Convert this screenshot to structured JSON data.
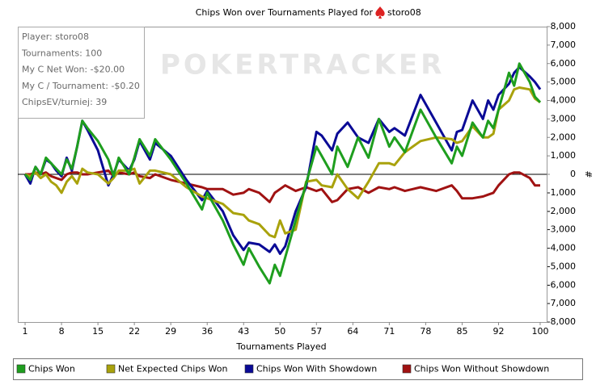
{
  "chart_data": {
    "type": "line",
    "title": "Chips Won over Tournaments Played for",
    "title_player": "storo08",
    "watermark": "POKERTRACKER",
    "info": [
      "Player: storo08",
      "Tournaments: 100",
      "My C Net Won: -$20.00",
      "My C / Tournament: -$0.20",
      "ChipsEV/turniej: 39"
    ],
    "x_label": "Tournaments Played",
    "y_label": "#",
    "x": [
      1,
      2,
      3,
      4,
      5,
      6,
      7,
      8,
      9,
      10,
      11,
      12,
      13,
      15,
      17,
      18,
      19,
      21,
      22,
      23,
      25,
      26,
      29,
      32,
      35,
      36,
      39,
      41,
      43,
      44,
      46,
      48,
      49,
      50,
      51,
      53,
      55,
      57,
      58,
      60,
      61,
      63,
      65,
      67,
      69,
      71,
      72,
      74,
      77,
      80,
      83,
      84,
      85,
      87,
      89,
      90,
      91,
      92,
      94,
      95,
      96,
      98,
      99,
      100
    ],
    "series": [
      {
        "name": "Chips Won",
        "color": "#1e9e1e",
        "values": [
          0,
          -300,
          400,
          0,
          900,
          600,
          300,
          0,
          800,
          300,
          1500,
          2900,
          2500,
          1800,
          800,
          -100,
          900,
          0,
          900,
          1900,
          1000,
          1900,
          800,
          -500,
          -1900,
          -1000,
          -2500,
          -3800,
          -4900,
          -4000,
          -5000,
          -5900,
          -4900,
          -5500,
          -4500,
          -2500,
          -500,
          1500,
          1000,
          0,
          1500,
          400,
          2000,
          900,
          3000,
          1500,
          2000,
          1200,
          3500,
          2000,
          600,
          1500,
          1000,
          2800,
          2000,
          2900,
          2500,
          3500,
          5500,
          4800,
          6000,
          5000,
          4200,
          3900
        ]
      },
      {
        "name": "Net Expected Chips Won",
        "color": "#a9a20c",
        "values": [
          0,
          -100,
          100,
          -200,
          0,
          -400,
          -600,
          -1000,
          -400,
          -100,
          -500,
          300,
          100,
          0,
          -500,
          -200,
          200,
          200,
          300,
          -500,
          200,
          200,
          0,
          -700,
          -1200,
          -1300,
          -1600,
          -2100,
          -2200,
          -2500,
          -2700,
          -3300,
          -3400,
          -2500,
          -3200,
          -3000,
          -400,
          -300,
          -600,
          -700,
          0,
          -800,
          -1300,
          -400,
          600,
          600,
          500,
          1200,
          1800,
          2000,
          1900,
          1700,
          1800,
          2600,
          2000,
          2000,
          2200,
          3500,
          4000,
          4600,
          4700,
          4600,
          4100,
          3900
        ]
      },
      {
        "name": "Chips Won With Showdown",
        "color": "#0a0a96",
        "values": [
          0,
          -500,
          400,
          0,
          800,
          600,
          200,
          -100,
          900,
          200,
          1500,
          2900,
          2400,
          1300,
          -600,
          0,
          800,
          200,
          800,
          1800,
          800,
          1700,
          1000,
          -300,
          -1400,
          -900,
          -2000,
          -3300,
          -4100,
          -3700,
          -3800,
          -4200,
          -3800,
          -4300,
          -3900,
          -2000,
          -700,
          2300,
          2100,
          1300,
          2200,
          2800,
          2000,
          1700,
          3000,
          2300,
          2500,
          2100,
          4300,
          2800,
          1300,
          2300,
          2400,
          4000,
          3000,
          4000,
          3500,
          4300,
          4900,
          5500,
          5800,
          5300,
          5000,
          4600
        ]
      },
      {
        "name": "Chips Won Without Showdown",
        "color": "#a01212",
        "values": [
          0,
          0,
          100,
          0,
          100,
          -100,
          -200,
          -300,
          0,
          100,
          100,
          0,
          0,
          100,
          200,
          -100,
          100,
          0,
          100,
          -100,
          -200,
          0,
          -300,
          -500,
          -700,
          -800,
          -800,
          -1100,
          -1000,
          -800,
          -1000,
          -1500,
          -1000,
          -800,
          -600,
          -900,
          -700,
          -900,
          -800,
          -1500,
          -1400,
          -800,
          -700,
          -1000,
          -700,
          -800,
          -700,
          -900,
          -700,
          -900,
          -600,
          -900,
          -1300,
          -1300,
          -1200,
          -1100,
          -1000,
          -600,
          0,
          100,
          100,
          -200,
          -600,
          -600
        ]
      }
    ],
    "xlim": [
      0,
      101
    ],
    "xticks": [
      1,
      8,
      15,
      22,
      29,
      36,
      43,
      50,
      57,
      64,
      71,
      78,
      85,
      92,
      100
    ],
    "ylim": [
      -8000,
      8000
    ],
    "yticks": [
      {
        "value": -8000,
        "label": "-8,000"
      },
      {
        "value": -7000,
        "label": "-7,000"
      },
      {
        "value": -6000,
        "label": "-6,000"
      },
      {
        "value": -5000,
        "label": "-5,000"
      },
      {
        "value": -4000,
        "label": "-4,000"
      },
      {
        "value": -3000,
        "label": "-3,000"
      },
      {
        "value": -2000,
        "label": "-2,000"
      },
      {
        "value": -1000,
        "label": "-1,000"
      },
      0,
      {
        "value": 1000,
        "label": "1,000"
      },
      {
        "value": 2000,
        "label": "2,000"
      },
      {
        "value": 3000,
        "label": "3,000"
      },
      {
        "value": 4000,
        "label": "4,000"
      },
      {
        "value": 5000,
        "label": "5,000"
      },
      {
        "value": 6000,
        "label": "6,000"
      },
      {
        "value": 7000,
        "label": "7,000"
      },
      {
        "value": 8000,
        "label": "8,000"
      }
    ],
    "baseline": 0,
    "grid": false
  }
}
